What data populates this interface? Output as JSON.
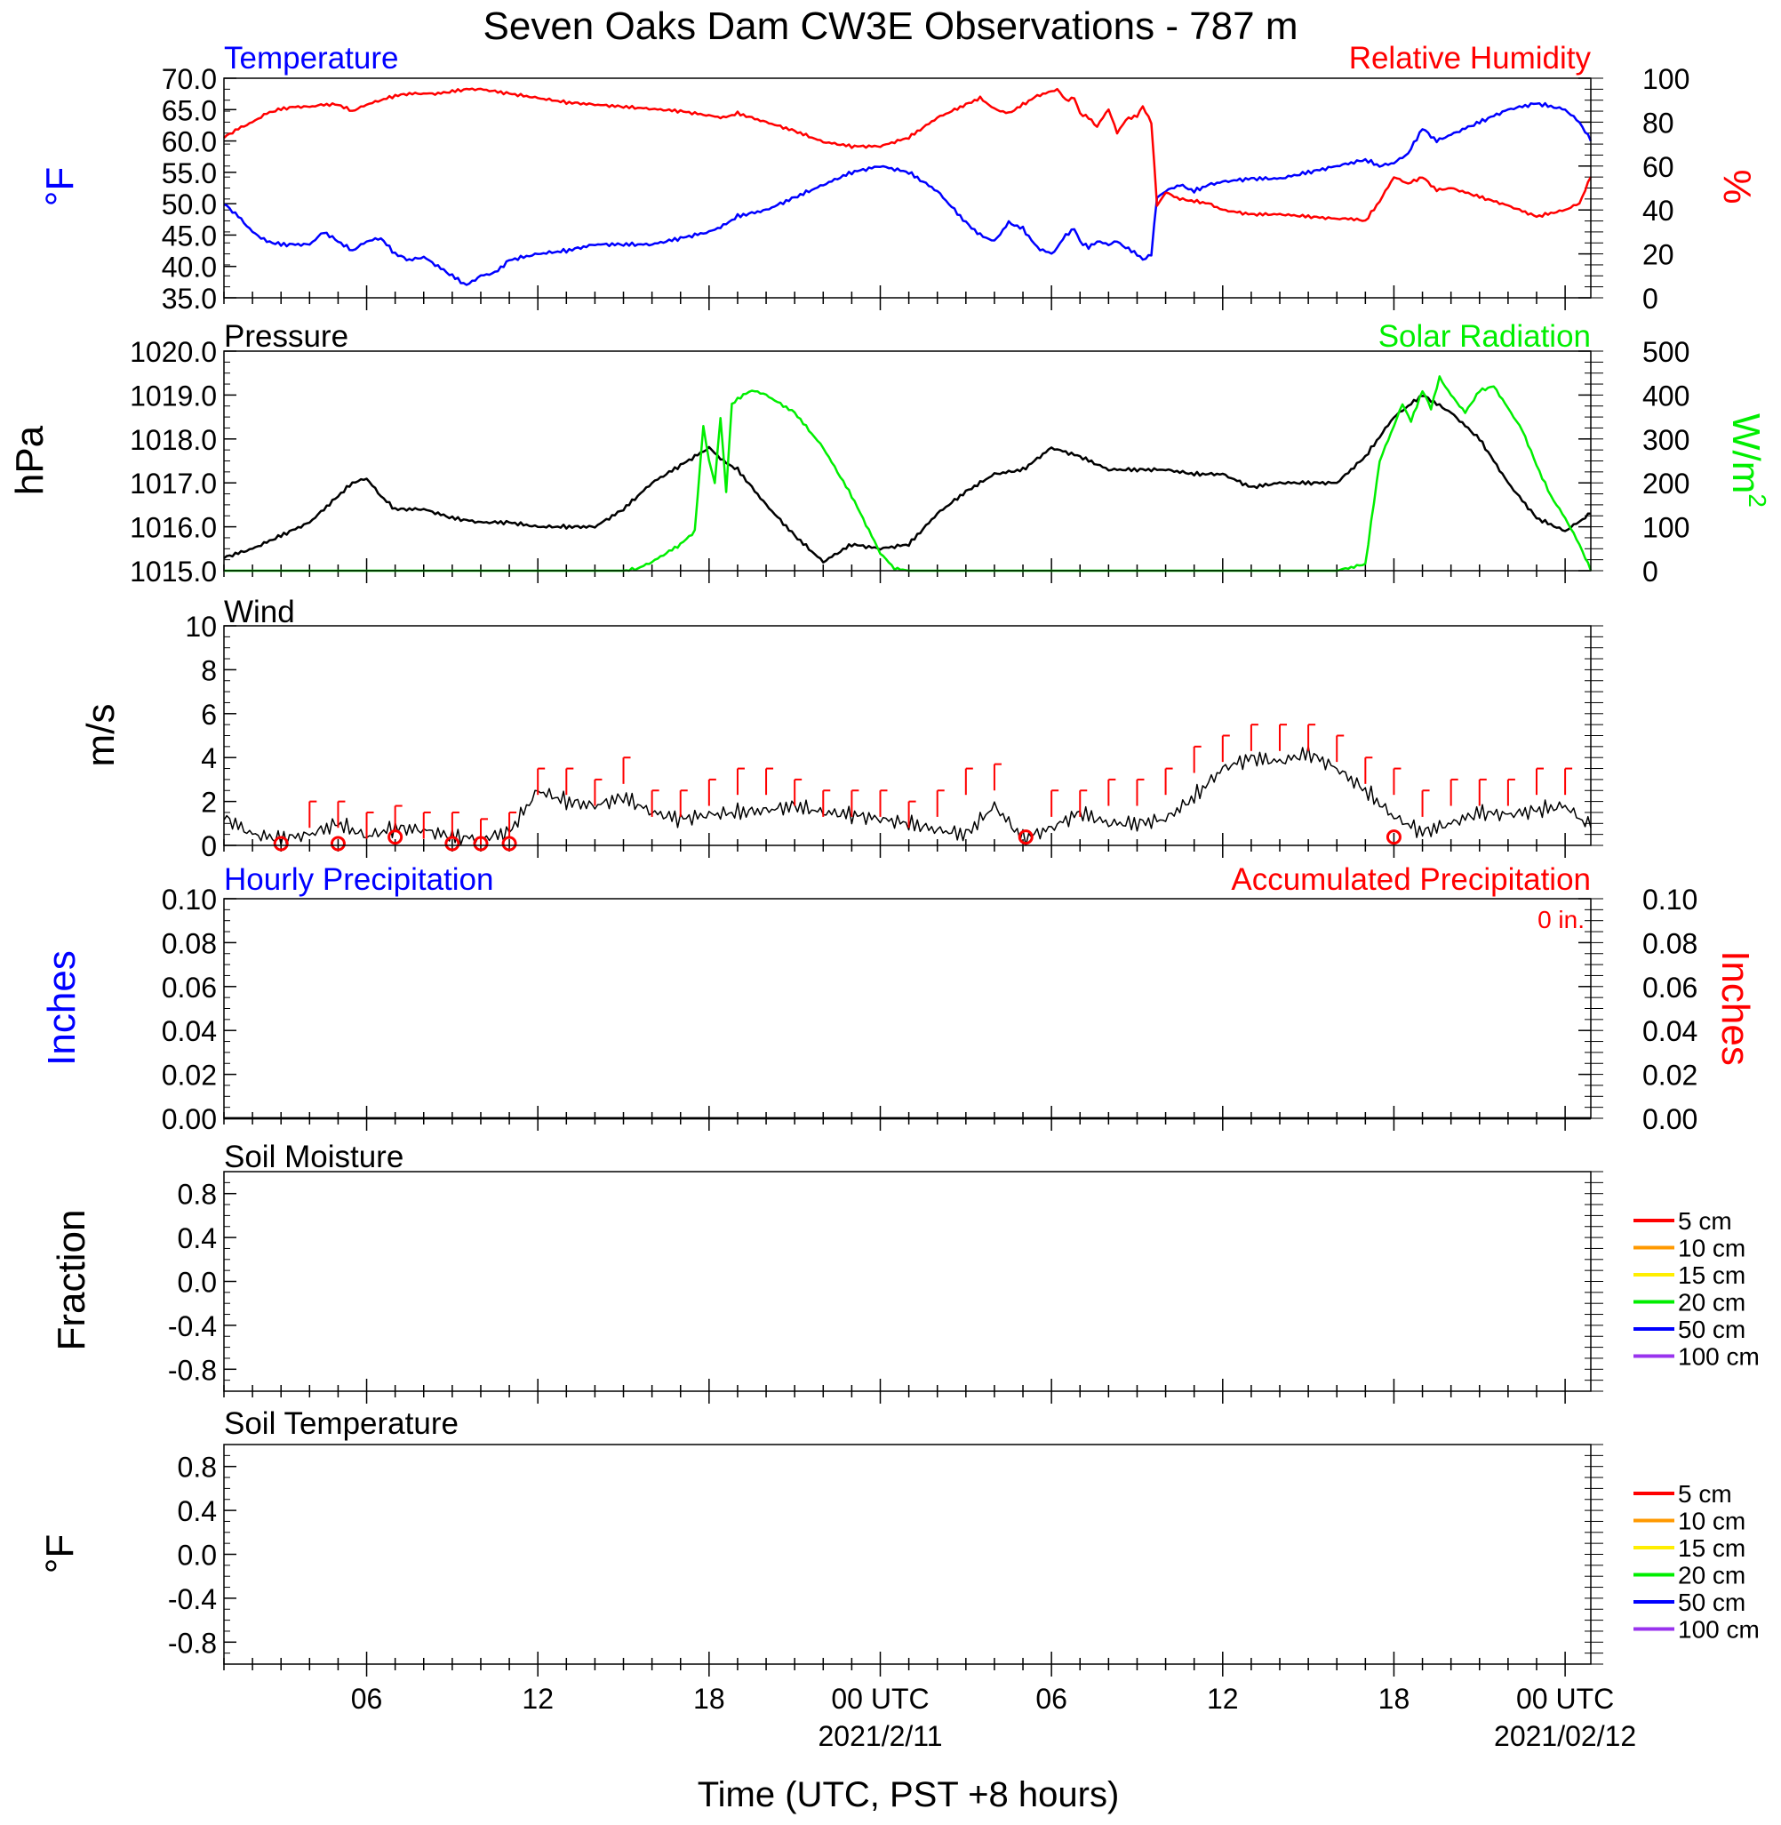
{
  "title": "Seven Oaks Dam CW3E Observations - 787 m",
  "xaxis": {
    "ticks": [
      {
        "t": 6,
        "label": "06"
      },
      {
        "t": 12,
        "label": "12"
      },
      {
        "t": 18,
        "label": "18"
      },
      {
        "t": 24,
        "label": "00 UTC",
        "date": "2021/2/11"
      },
      {
        "t": 30,
        "label": "06"
      },
      {
        "t": 36,
        "label": "12"
      },
      {
        "t": 42,
        "label": "18"
      },
      {
        "t": 48,
        "label": "00 UTC",
        "date": "2021/02/12"
      }
    ],
    "xlabel": "Time (UTC, PST +8 hours)",
    "range_hours": [
      1,
      48.9
    ]
  },
  "colors": {
    "temperature": "#0000ff",
    "humidity": "#ff0000",
    "pressure": "#000000",
    "solar": "#00ee00",
    "wind": "#000000",
    "gust": "#ff0000",
    "hourly_precip": "#0000ff",
    "accum_precip": "#ff0000"
  },
  "chart_data": [
    {
      "type": "line",
      "panel": "temp_rh",
      "left_title": "Temperature",
      "right_title": "Relative Humidity",
      "ylabel_left": "°F",
      "ylabel_right": "%",
      "ylim_left": [
        35,
        70
      ],
      "ylim_right": [
        0,
        100
      ],
      "yticks_left": [
        "35.0",
        "40.0",
        "45.0",
        "50.0",
        "55.0",
        "60.0",
        "65.0",
        "70.0"
      ],
      "yticks_right": [
        "0",
        "20",
        "40",
        "60",
        "80",
        "100"
      ],
      "series": [
        {
          "key": "temperature",
          "axis": "left",
          "x": [
            1,
            1.5,
            2,
            2.5,
            3,
            3.5,
            4,
            4.5,
            5,
            5.5,
            6,
            6.5,
            7,
            7.5,
            8,
            8.5,
            9,
            9.5,
            10,
            10.5,
            11,
            11.5,
            12,
            13,
            14,
            15,
            16,
            17,
            18,
            18.5,
            19,
            20,
            21,
            22,
            23,
            24,
            25,
            26,
            27,
            27.5,
            28,
            28.5,
            29,
            29.5,
            30,
            30.2,
            30.5,
            30.8,
            31,
            31.3,
            31.6,
            32,
            32.3,
            32.6,
            33,
            33.2,
            33.5,
            33.7,
            34,
            34.5,
            35,
            35.5,
            36,
            37,
            38,
            39,
            40,
            40.5,
            41,
            41.5,
            42,
            42.5,
            43,
            43.5,
            44,
            45,
            46,
            47,
            48,
            48.5,
            48.9
          ],
          "y": [
            50,
            48,
            45.5,
            44,
            43.5,
            43.5,
            43.5,
            45.5,
            44,
            42.5,
            44,
            44.5,
            42,
            41,
            41.5,
            40,
            38.5,
            37,
            38.5,
            39,
            41,
            41.5,
            42,
            42.5,
            43.5,
            43.5,
            43.5,
            44.5,
            45.5,
            46.5,
            48,
            49,
            51,
            53,
            55,
            56,
            55,
            52,
            47,
            45,
            44,
            47,
            46,
            43,
            42,
            43,
            45,
            46,
            44,
            43,
            44,
            43.5,
            44,
            43,
            42,
            41,
            42,
            51,
            52,
            53,
            52,
            53,
            53.5,
            54,
            54,
            55,
            56,
            56.5,
            57,
            56,
            56.5,
            58,
            62,
            60,
            61,
            63,
            65,
            66,
            65,
            63,
            60
          ]
        },
        {
          "key": "humidity",
          "axis": "right",
          "x": [
            1,
            1.5,
            2,
            2.5,
            3,
            3.5,
            4,
            4.5,
            5,
            5.5,
            6,
            6.5,
            7,
            7.5,
            8,
            8.5,
            9,
            9.5,
            10,
            10.5,
            11,
            11.5,
            12,
            13,
            14,
            15,
            16,
            17,
            18,
            18.5,
            19,
            20,
            21,
            22,
            23,
            24,
            25,
            26,
            27,
            27.5,
            28,
            28.5,
            29,
            29.5,
            30,
            30.2,
            30.5,
            30.8,
            31,
            31.3,
            31.6,
            32,
            32.3,
            32.6,
            33,
            33.2,
            33.5,
            33.7,
            34,
            34.5,
            35,
            35.5,
            36,
            37,
            38,
            39,
            40,
            40.5,
            41,
            41.5,
            42,
            42.5,
            43,
            43.5,
            44,
            45,
            46,
            47,
            48,
            48.5,
            48.9
          ],
          "y": [
            73,
            77,
            80,
            84,
            86,
            87,
            87,
            88,
            88,
            85,
            88,
            90,
            92,
            93,
            93,
            93,
            94,
            95,
            95,
            94,
            93,
            92,
            91,
            89,
            88,
            87,
            86,
            85,
            83,
            82,
            84,
            80,
            76,
            71,
            69,
            69,
            73,
            82,
            88,
            91,
            86,
            84,
            88,
            92,
            94,
            95,
            90,
            91,
            84,
            82,
            78,
            86,
            75,
            81,
            83,
            87,
            80,
            42,
            48,
            45,
            44,
            43,
            40,
            38,
            38,
            37,
            36,
            36,
            35,
            44,
            55,
            52,
            55,
            49,
            50,
            46,
            42,
            37,
            40,
            43,
            55
          ]
        },
        {
          "key": "dummy",
          "axis": "none",
          "x": [],
          "y": []
        }
      ]
    },
    {
      "type": "line",
      "panel": "pressure_solar",
      "left_title": "Pressure",
      "right_title": "Solar Radiation",
      "ylabel_left": "hPa",
      "ylabel_right": "W/m",
      "ylabel_right_sup": "2",
      "ylim_left": [
        1015,
        1020
      ],
      "ylim_right": [
        0,
        500
      ],
      "yticks_left": [
        "1015.0",
        "1016.0",
        "1017.0",
        "1018.0",
        "1019.0",
        "1020.0"
      ],
      "yticks_right": [
        "0",
        "100",
        "200",
        "300",
        "400",
        "500"
      ],
      "series": [
        {
          "key": "pressure",
          "axis": "left",
          "x": [
            1,
            2,
            3,
            4,
            5,
            5.5,
            6,
            6.5,
            7,
            8,
            9,
            10,
            11,
            12,
            13,
            14,
            15,
            16,
            17,
            17.5,
            18,
            18.5,
            19,
            20,
            21,
            22,
            23,
            24,
            25,
            26,
            27,
            28,
            29,
            30,
            31,
            32,
            33,
            34,
            35,
            36,
            37,
            38,
            39,
            40,
            41,
            42,
            43,
            44,
            45,
            46,
            47,
            48,
            48.9
          ],
          "y": [
            1015.3,
            1015.5,
            1015.8,
            1016.1,
            1016.7,
            1017.0,
            1017.1,
            1016.7,
            1016.4,
            1016.4,
            1016.2,
            1016.1,
            1016.1,
            1016.0,
            1016.0,
            1016.0,
            1016.4,
            1017.0,
            1017.4,
            1017.6,
            1017.8,
            1017.5,
            1017.3,
            1016.5,
            1015.8,
            1015.2,
            1015.6,
            1015.5,
            1015.6,
            1016.3,
            1016.8,
            1017.2,
            1017.3,
            1017.8,
            1017.6,
            1017.3,
            1017.3,
            1017.3,
            1017.2,
            1017.2,
            1016.9,
            1017.0,
            1017.0,
            1017.0,
            1017.6,
            1018.5,
            1019.0,
            1018.6,
            1018.0,
            1017.0,
            1016.2,
            1015.9,
            1016.3
          ]
        },
        {
          "key": "solar",
          "axis": "right",
          "x": [
            1,
            14,
            15,
            15.5,
            16,
            17,
            17.5,
            17.8,
            18,
            18.2,
            18.4,
            18.6,
            18.8,
            19,
            19.3,
            19.6,
            20,
            21,
            22,
            23,
            24,
            24.5,
            25,
            26,
            30,
            35,
            38,
            40,
            41,
            41.5,
            42,
            42.3,
            42.6,
            43,
            43.3,
            43.6,
            44,
            44.5,
            45,
            45.5,
            46,
            46.5,
            47,
            47.5,
            48,
            48.5,
            48.9
          ],
          "y": [
            0,
            0,
            0,
            5,
            20,
            60,
            90,
            330,
            250,
            200,
            350,
            180,
            380,
            390,
            405,
            410,
            400,
            360,
            280,
            170,
            40,
            5,
            0,
            0,
            0,
            0,
            0,
            0,
            15,
            250,
            330,
            380,
            340,
            410,
            370,
            440,
            400,
            360,
            410,
            420,
            370,
            320,
            240,
            170,
            120,
            60,
            0
          ]
        },
        {
          "key": "dummy",
          "axis": "none",
          "x": [],
          "y": []
        }
      ]
    },
    {
      "type": "line",
      "panel": "wind",
      "left_title": "Wind",
      "ylabel_left": "m/s",
      "ylim_left": [
        0,
        10
      ],
      "yticks_left": [
        "0",
        "2",
        "4",
        "6",
        "8",
        "10"
      ],
      "series": [
        {
          "key": "wind",
          "axis": "left",
          "x": [
            1,
            2,
            3,
            4,
            5,
            6,
            7,
            8,
            9,
            10,
            11,
            12,
            13,
            14,
            15,
            16,
            17,
            18,
            19,
            20,
            21,
            22,
            23,
            24,
            25,
            26,
            27,
            28,
            29,
            30,
            31,
            32,
            33,
            34,
            35,
            36,
            37,
            38,
            39,
            40,
            41,
            42,
            43,
            44,
            45,
            46,
            47,
            48,
            48.9
          ],
          "y": [
            1.3,
            0.5,
            0.3,
            0.5,
            1.0,
            0.4,
            0.8,
            0.7,
            0.4,
            0.3,
            0.6,
            2.5,
            2.0,
            1.8,
            2.2,
            1.5,
            1.2,
            1.4,
            1.5,
            1.6,
            1.8,
            1.5,
            1.4,
            1.2,
            1.0,
            0.7,
            0.5,
            1.8,
            0.3,
            0.8,
            1.5,
            1.0,
            1.0,
            1.2,
            2.2,
            3.5,
            4.0,
            3.8,
            4.2,
            3.5,
            2.5,
            1.3,
            0.6,
            1.0,
            1.5,
            1.4,
            1.6,
            1.8,
            0.8
          ]
        },
        {
          "key": "gusts",
          "axis": "left",
          "x": [
            4,
            5,
            6,
            7,
            8,
            9,
            10,
            11,
            12,
            13,
            14,
            15,
            16,
            17,
            18,
            19,
            20,
            21,
            22,
            23,
            24,
            25,
            26,
            27,
            28,
            30,
            31,
            32,
            33,
            34,
            35,
            36,
            37,
            38,
            39,
            40,
            41,
            42,
            43,
            44,
            45,
            46,
            47,
            48
          ],
          "y": [
            2,
            2,
            1.5,
            1.8,
            1.5,
            1.5,
            1.2,
            1.5,
            3.5,
            3.5,
            3,
            4,
            2.5,
            2.5,
            3,
            3.5,
            3.5,
            3,
            2.5,
            2.5,
            2.5,
            2,
            2.5,
            3.5,
            3.7,
            2.5,
            2.5,
            3,
            3,
            3.5,
            4.5,
            5,
            5.5,
            5.5,
            5.5,
            5,
            4,
            3.5,
            2.5,
            3,
            3,
            3,
            3.5,
            3.5
          ]
        },
        {
          "key": "calm_markers",
          "axis": "left",
          "x": [
            3,
            5,
            7,
            9,
            10,
            11,
            29.1,
            42
          ],
          "y": [
            0,
            0,
            0.3,
            0,
            0,
            0,
            0.3,
            0.3
          ]
        }
      ]
    },
    {
      "type": "line",
      "panel": "precip",
      "left_title": "Hourly Precipitation",
      "right_title": "Accumulated Precipitation",
      "accum_total": "0 in.",
      "ylabel_left": "Inches",
      "ylabel_right": "Inches",
      "ylim_left": [
        0,
        0.1
      ],
      "ylim_right": [
        0,
        0.1
      ],
      "yticks_left": [
        "0.00",
        "0.02",
        "0.04",
        "0.06",
        "0.08",
        "0.10"
      ],
      "yticks_right": [
        "0.00",
        "0.02",
        "0.04",
        "0.06",
        "0.08",
        "0.10"
      ],
      "series": [
        {
          "key": "hourly",
          "axis": "left",
          "x": [
            1,
            48.9
          ],
          "y": [
            0,
            0
          ]
        },
        {
          "key": "accum",
          "axis": "right",
          "x": [
            1,
            48.9
          ],
          "y": [
            0,
            0
          ]
        },
        {
          "key": "dummy",
          "axis": "none",
          "x": [],
          "y": []
        }
      ]
    },
    {
      "type": "line",
      "panel": "soil_moisture",
      "left_title": "Soil Moisture",
      "ylabel_left": "Fraction",
      "ylim_left": [
        -1,
        1
      ],
      "yticks_left": [
        "-0.8",
        "-0.4",
        "0.0",
        "0.4",
        "0.8"
      ],
      "legend": [
        "5 cm",
        "10 cm",
        "15 cm",
        "20 cm",
        "50 cm",
        "100 cm"
      ],
      "legend_colors": [
        "#ff0000",
        "#ff9900",
        "#ffee00",
        "#00ee00",
        "#0000ff",
        "#9933ee"
      ],
      "series": [
        {
          "key": "dummy1",
          "axis": "none",
          "x": [],
          "y": []
        },
        {
          "key": "dummy2",
          "axis": "none",
          "x": [],
          "y": []
        },
        {
          "key": "dummy3",
          "axis": "none",
          "x": [],
          "y": []
        }
      ]
    },
    {
      "type": "line",
      "panel": "soil_temperature",
      "left_title": "Soil Temperature",
      "ylabel_left": "°F",
      "ylim_left": [
        -1,
        1
      ],
      "yticks_left": [
        "-0.8",
        "-0.4",
        "0.0",
        "0.4",
        "0.8"
      ],
      "legend": [
        "5 cm",
        "10 cm",
        "15 cm",
        "20 cm",
        "50 cm",
        "100 cm"
      ],
      "legend_colors": [
        "#ff0000",
        "#ff9900",
        "#ffee00",
        "#00ee00",
        "#0000ff",
        "#9933ee"
      ],
      "series": [
        {
          "key": "dummy1",
          "axis": "none",
          "x": [],
          "y": []
        },
        {
          "key": "dummy2",
          "axis": "none",
          "x": [],
          "y": []
        },
        {
          "key": "dummy3",
          "axis": "none",
          "x": [],
          "y": []
        }
      ]
    }
  ]
}
